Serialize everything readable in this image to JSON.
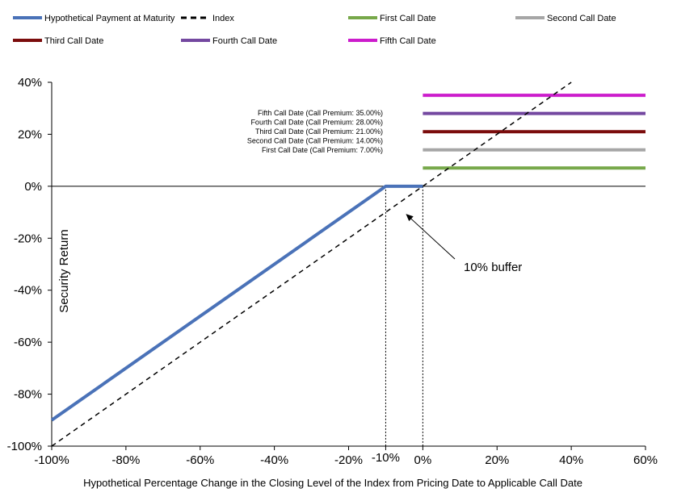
{
  "chart_data": {
    "type": "line",
    "xlabel": "Hypothetical Percentage Change in the Closing Level of the Index from Pricing Date to Applicable Call Date",
    "ylabel": "Security Return",
    "xlim": [
      -100,
      60
    ],
    "ylim": [
      -100,
      40
    ],
    "x_ticks": [
      {
        "value": -100,
        "label": "-100%"
      },
      {
        "value": -80,
        "label": "-80%"
      },
      {
        "value": -60,
        "label": "-60%"
      },
      {
        "value": -40,
        "label": "-40%"
      },
      {
        "value": -20,
        "label": "-20%"
      },
      {
        "value": -10,
        "label": "-10%"
      },
      {
        "value": 0,
        "label": "0%"
      },
      {
        "value": 20,
        "label": "20%"
      },
      {
        "value": 40,
        "label": "40%"
      },
      {
        "value": 60,
        "label": "60%"
      }
    ],
    "y_ticks": [
      {
        "value": 40,
        "label": "40%"
      },
      {
        "value": 20,
        "label": "20%"
      },
      {
        "value": 0,
        "label": "0%"
      },
      {
        "value": -20,
        "label": "-20%"
      },
      {
        "value": -40,
        "label": "-40%"
      },
      {
        "value": -60,
        "label": "-60%"
      },
      {
        "value": -80,
        "label": "-80%"
      },
      {
        "value": -100,
        "label": "-100%"
      }
    ],
    "series": [
      {
        "name": "Hypothetical Payment at Maturity",
        "color": "#4a72b8",
        "style": "solid",
        "x": [
          -100,
          -10,
          0
        ],
        "y": [
          -90,
          0,
          0
        ]
      },
      {
        "name": "Index",
        "color": "#000000",
        "style": "dashed",
        "x": [
          -100,
          40
        ],
        "y": [
          -100,
          40
        ]
      },
      {
        "name": "First Call Date",
        "color": "#77a84a",
        "style": "solid",
        "x": [
          0,
          60
        ],
        "y": [
          7,
          7
        ]
      },
      {
        "name": "Second Call Date",
        "color": "#a6a6a6",
        "style": "solid",
        "x": [
          0,
          60
        ],
        "y": [
          14,
          14
        ]
      },
      {
        "name": "Third Call Date",
        "color": "#7b0c0c",
        "style": "solid",
        "x": [
          0,
          60
        ],
        "y": [
          21,
          21
        ]
      },
      {
        "name": "Fourth Call Date",
        "color": "#7448a0",
        "style": "solid",
        "x": [
          0,
          60
        ],
        "y": [
          28,
          28
        ]
      },
      {
        "name": "Fifth Call Date",
        "color": "#cc1ccc",
        "style": "solid",
        "x": [
          0,
          60
        ],
        "y": [
          35,
          35
        ]
      }
    ],
    "legend": [
      "Hypothetical Payment at Maturity",
      "Index",
      "First Call Date",
      "Second Call Date",
      "Third Call Date",
      "Fourth Call Date",
      "Fifth Call Date"
    ],
    "annotations": [
      "Fifth Call Date (Call Premium: 35.00%)",
      "Fourth Call Date (Call Premium: 28.00%)",
      "Third Call Date (Call Premium: 21.00%)",
      "Second Call Date (Call Premium: 14.00%)",
      "First Call Date (Call Premium: 7.00%)"
    ],
    "buffer_label": "10% buffer",
    "buffer_point": {
      "x": -5,
      "y": -10
    }
  }
}
